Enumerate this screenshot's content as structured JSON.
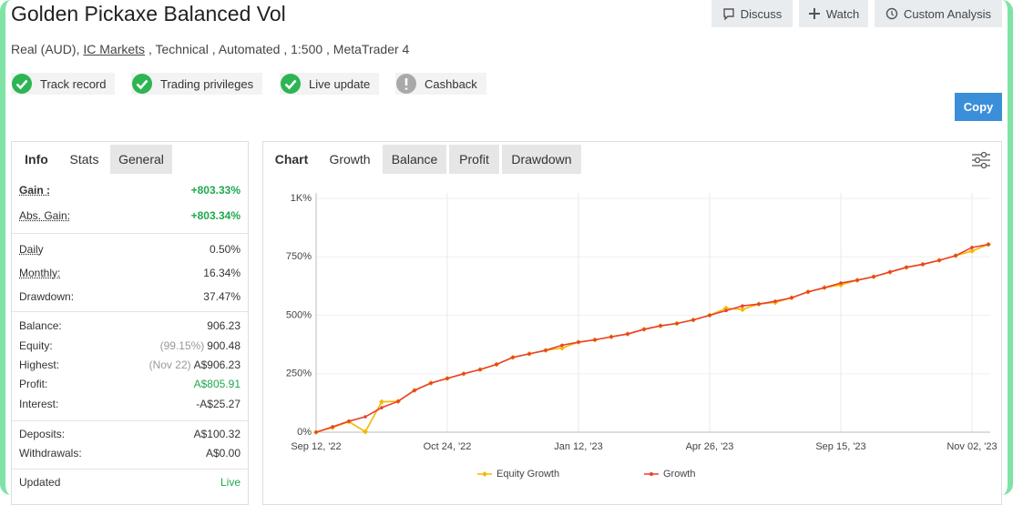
{
  "header": {
    "title": "Golden Pickaxe Balanced Vol",
    "buttons": [
      "Discuss",
      "Watch",
      "Custom Analysis"
    ],
    "subtitle": [
      "Real (AUD),",
      "IC Markets",
      ", Technical , Automated , 1:500 , MetaTrader 4"
    ]
  },
  "badges": [
    "Track record",
    "Trading privileges",
    "Live update",
    "Cashback"
  ],
  "copy_button": "Copy",
  "left_tabs": [
    "Info",
    "Stats",
    "General"
  ],
  "stats": [
    [
      {
        "label": "Gain :",
        "value": "+803.33%"
      },
      {
        "label": "Abs. Gain:",
        "value": "+803.34%"
      }
    ],
    [
      {
        "label": "Daily",
        "value": "0.50%"
      },
      {
        "label": "Monthly:",
        "value": "16.34%"
      },
      {
        "label": "Drawdown:",
        "value": "37.47%"
      }
    ],
    [
      {
        "label": "Balance:",
        "value": "906.23"
      },
      {
        "label": "Equity:",
        "note": "(99.15%)",
        "value": "900.48"
      },
      {
        "label": "Highest:",
        "note": "(Nov 22)",
        "value": "A$906.23"
      },
      {
        "label": "Profit:",
        "value": "A$805.91"
      },
      {
        "label": "Interest:",
        "value": "-A$25.27"
      }
    ],
    [
      {
        "label": "Deposits:",
        "value": "A$100.32"
      },
      {
        "label": "Withdrawals:",
        "value": "A$0.00"
      }
    ],
    [
      {
        "label": "Updated",
        "value": "Live"
      }
    ]
  ],
  "chart_tabs": [
    "Chart",
    "Growth",
    "Balance",
    "Profit",
    "Drawdown"
  ],
  "chart_data": {
    "type": "line",
    "categories": [
      "Sep 12, '22",
      null,
      null,
      null,
      null,
      null,
      null,
      null,
      "Oct 24, '22",
      null,
      null,
      null,
      null,
      null,
      null,
      null,
      "Jan 12, '23",
      null,
      null,
      null,
      null,
      null,
      null,
      null,
      "Apr 26, '23",
      null,
      null,
      null,
      null,
      null,
      null,
      null,
      "Sep 15, '23",
      null,
      null,
      null,
      null,
      null,
      null,
      null,
      "Nov 02, '23",
      null
    ],
    "series": [
      {
        "name": "Equity Growth",
        "color": "#f5b800",
        "values": [
          0,
          20,
          45,
          2,
          130,
          132,
          179,
          210,
          230,
          250,
          268,
          290,
          320,
          335,
          350,
          360,
          385,
          395,
          408,
          420,
          440,
          455,
          465,
          480,
          500,
          530,
          525,
          548,
          555,
          575,
          600,
          618,
          630,
          650,
          665,
          685,
          705,
          718,
          735,
          755,
          775,
          803
        ]
      },
      {
        "name": "Growth",
        "color": "#e8412f",
        "values": [
          0,
          23,
          47,
          66,
          105,
          132,
          179,
          210,
          230,
          250,
          268,
          290,
          320,
          335,
          350,
          372,
          385,
          395,
          408,
          420,
          440,
          455,
          465,
          480,
          500,
          520,
          540,
          548,
          560,
          575,
          600,
          618,
          638,
          650,
          665,
          685,
          705,
          718,
          735,
          755,
          790,
          803
        ]
      }
    ],
    "ylim": [
      0,
      1000
    ],
    "yticks": [
      {
        "value": 0,
        "label": "0%"
      },
      {
        "value": 250,
        "label": "250%"
      },
      {
        "value": 500,
        "label": "500%"
      },
      {
        "value": 750,
        "label": "750%"
      },
      {
        "value": 1000,
        "label": "1K%"
      }
    ],
    "grid": true,
    "legend": "bottom"
  }
}
